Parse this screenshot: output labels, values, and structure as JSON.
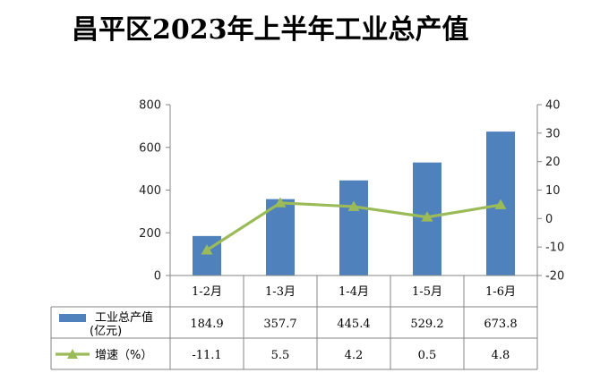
{
  "title": "昌平区2023年上半年工业总产值",
  "chart_data": {
    "type": "bar",
    "categories": [
      "1-2月",
      "1-3月",
      "1-4月",
      "1-5月",
      "1-6月"
    ],
    "series": [
      {
        "name": "工业总产值（亿元）",
        "type": "bar",
        "axis": "left",
        "values": [
          184.9,
          357.7,
          445.4,
          529.2,
          673.8
        ],
        "color": "#4f81bd"
      },
      {
        "name": "增速（%）",
        "type": "line",
        "axis": "right",
        "values": [
          -11.1,
          5.5,
          4.2,
          0.5,
          4.8
        ],
        "color": "#9bbb59"
      }
    ],
    "legend_lines": [
      [
        "工业总产值",
        "(亿元)"
      ],
      [
        "增速（%）"
      ]
    ],
    "table": [
      [
        "184.9",
        "357.7",
        "445.4",
        "529.2",
        "673.8"
      ],
      [
        "-11.1",
        "5.5",
        "4.2",
        "0.5",
        "4.8"
      ]
    ],
    "ylim_left": [
      0,
      800
    ],
    "yticks_left": [
      "0",
      "200",
      "400",
      "600",
      "800"
    ],
    "ylim_right": [
      -20,
      40
    ],
    "yticks_right": [
      "-20",
      "-10",
      "0",
      "10",
      "20",
      "30",
      "40"
    ],
    "grid": false,
    "legend": "data-table"
  }
}
